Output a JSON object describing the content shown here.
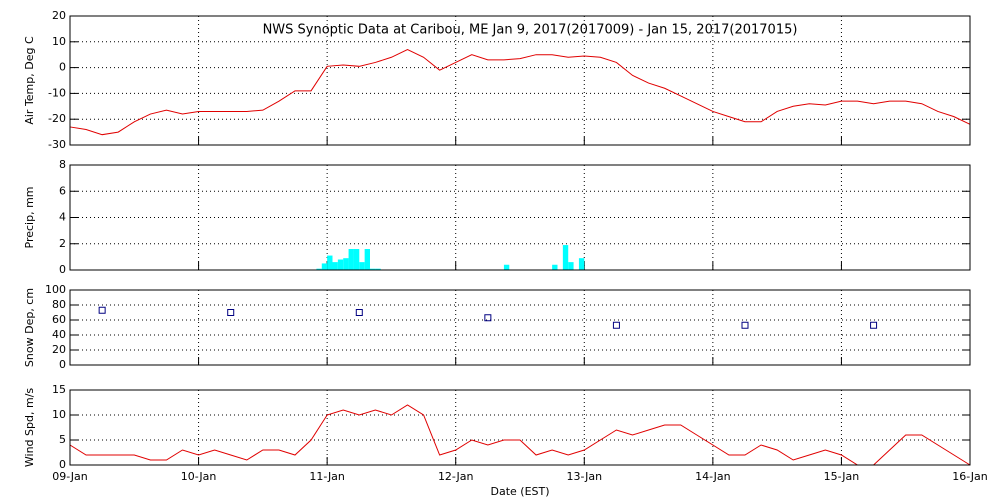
{
  "x_axis": {
    "label": "Date (EST)",
    "xlim": [
      0,
      168
    ],
    "xticks": [
      {
        "value": 0,
        "label": "09-Jan"
      },
      {
        "value": 24,
        "label": "10-Jan"
      },
      {
        "value": 48,
        "label": "11-Jan"
      },
      {
        "value": 72,
        "label": "12-Jan"
      },
      {
        "value": 96,
        "label": "13-Jan"
      },
      {
        "value": 120,
        "label": "14-Jan"
      },
      {
        "value": 144,
        "label": "15-Jan"
      },
      {
        "value": 168,
        "label": "16-Jan"
      }
    ]
  },
  "chart_data": [
    {
      "type": "line",
      "title": "NWS Synoptic Data at Caribou, ME   Jan  9, 2017(2017009) - Jan 15, 2017(2017015)",
      "y_label": "Air Temp, Deg C",
      "ylim": [
        -30,
        20
      ],
      "yticks": [
        -30,
        -20,
        -10,
        0,
        10,
        20
      ],
      "grid": true,
      "color": "#e00000",
      "x": [
        0,
        3,
        6,
        9,
        12,
        15,
        18,
        21,
        24,
        27,
        30,
        33,
        36,
        39,
        42,
        45,
        48,
        51,
        54,
        57,
        60,
        63,
        66,
        69,
        72,
        75,
        78,
        81,
        84,
        87,
        90,
        93,
        96,
        99,
        102,
        105,
        108,
        111,
        114,
        117,
        120,
        123,
        126,
        129,
        132,
        135,
        138,
        141,
        144,
        147,
        150,
        153,
        156,
        159,
        162,
        165,
        168
      ],
      "values": [
        -23,
        -24,
        -26,
        -25,
        -21,
        -18,
        -16.5,
        -18,
        -17,
        -17,
        -17,
        -17,
        -16.5,
        -13,
        -9,
        -9,
        0.5,
        1,
        0.5,
        2,
        4,
        7,
        4,
        -1,
        2,
        5,
        3,
        3,
        3.5,
        5,
        5,
        4,
        4.5,
        4,
        2,
        -3,
        -6,
        -8,
        -11,
        -14,
        -17,
        -19,
        -21,
        -21,
        -17,
        -15,
        -14,
        -14.5,
        -13,
        -13,
        -14,
        -13,
        -13,
        -14,
        -17,
        -19,
        -22
      ]
    },
    {
      "type": "bar",
      "y_label": "Precip, mm",
      "ylim": [
        0,
        8
      ],
      "yticks": [
        0,
        2,
        4,
        6,
        8
      ],
      "grid": true,
      "color": "#00ffff",
      "x": [
        46,
        47,
        48,
        49,
        50,
        51,
        52,
        53,
        54,
        55,
        56,
        57,
        81,
        90,
        92,
        93,
        95
      ],
      "values": [
        0.1,
        0.5,
        1.1,
        0.6,
        0.8,
        0.9,
        1.6,
        1.6,
        0.6,
        1.6,
        0.1,
        0.1,
        0.4,
        0.4,
        1.9,
        0.6,
        0.9
      ]
    },
    {
      "type": "scatter",
      "y_label": "Snow Dep, cm",
      "ylim": [
        0,
        100
      ],
      "yticks": [
        0,
        20,
        40,
        60,
        80,
        100
      ],
      "grid": true,
      "color": "#000080",
      "x": [
        6,
        30,
        54,
        78,
        102,
        126,
        150
      ],
      "values": [
        73,
        70,
        70,
        63,
        53,
        53,
        53
      ]
    },
    {
      "type": "line",
      "y_label": "Wind Spd, m/s",
      "ylim": [
        0,
        15
      ],
      "yticks": [
        0,
        5,
        10,
        15
      ],
      "grid": true,
      "color": "#e00000",
      "x": [
        0,
        3,
        6,
        9,
        12,
        15,
        18,
        21,
        24,
        27,
        30,
        33,
        36,
        39,
        42,
        45,
        48,
        51,
        54,
        57,
        60,
        63,
        66,
        69,
        72,
        75,
        78,
        81,
        84,
        87,
        90,
        93,
        96,
        99,
        102,
        105,
        108,
        111,
        114,
        117,
        120,
        123,
        126,
        129,
        132,
        135,
        138,
        141,
        144,
        147,
        150,
        153,
        156,
        159,
        162,
        165,
        168
      ],
      "values": [
        4,
        2,
        2,
        2,
        2,
        1,
        1,
        3,
        2,
        3,
        2,
        1,
        3,
        3,
        2,
        5,
        10,
        11,
        10,
        11,
        10,
        12,
        10,
        2,
        3,
        5,
        4,
        5,
        5,
        2,
        3,
        2,
        3,
        5,
        7,
        6,
        7,
        8,
        8,
        6,
        4,
        2,
        2,
        4,
        3,
        1,
        2,
        3,
        2,
        0,
        0,
        3,
        6,
        6,
        4,
        2,
        0
      ]
    }
  ]
}
